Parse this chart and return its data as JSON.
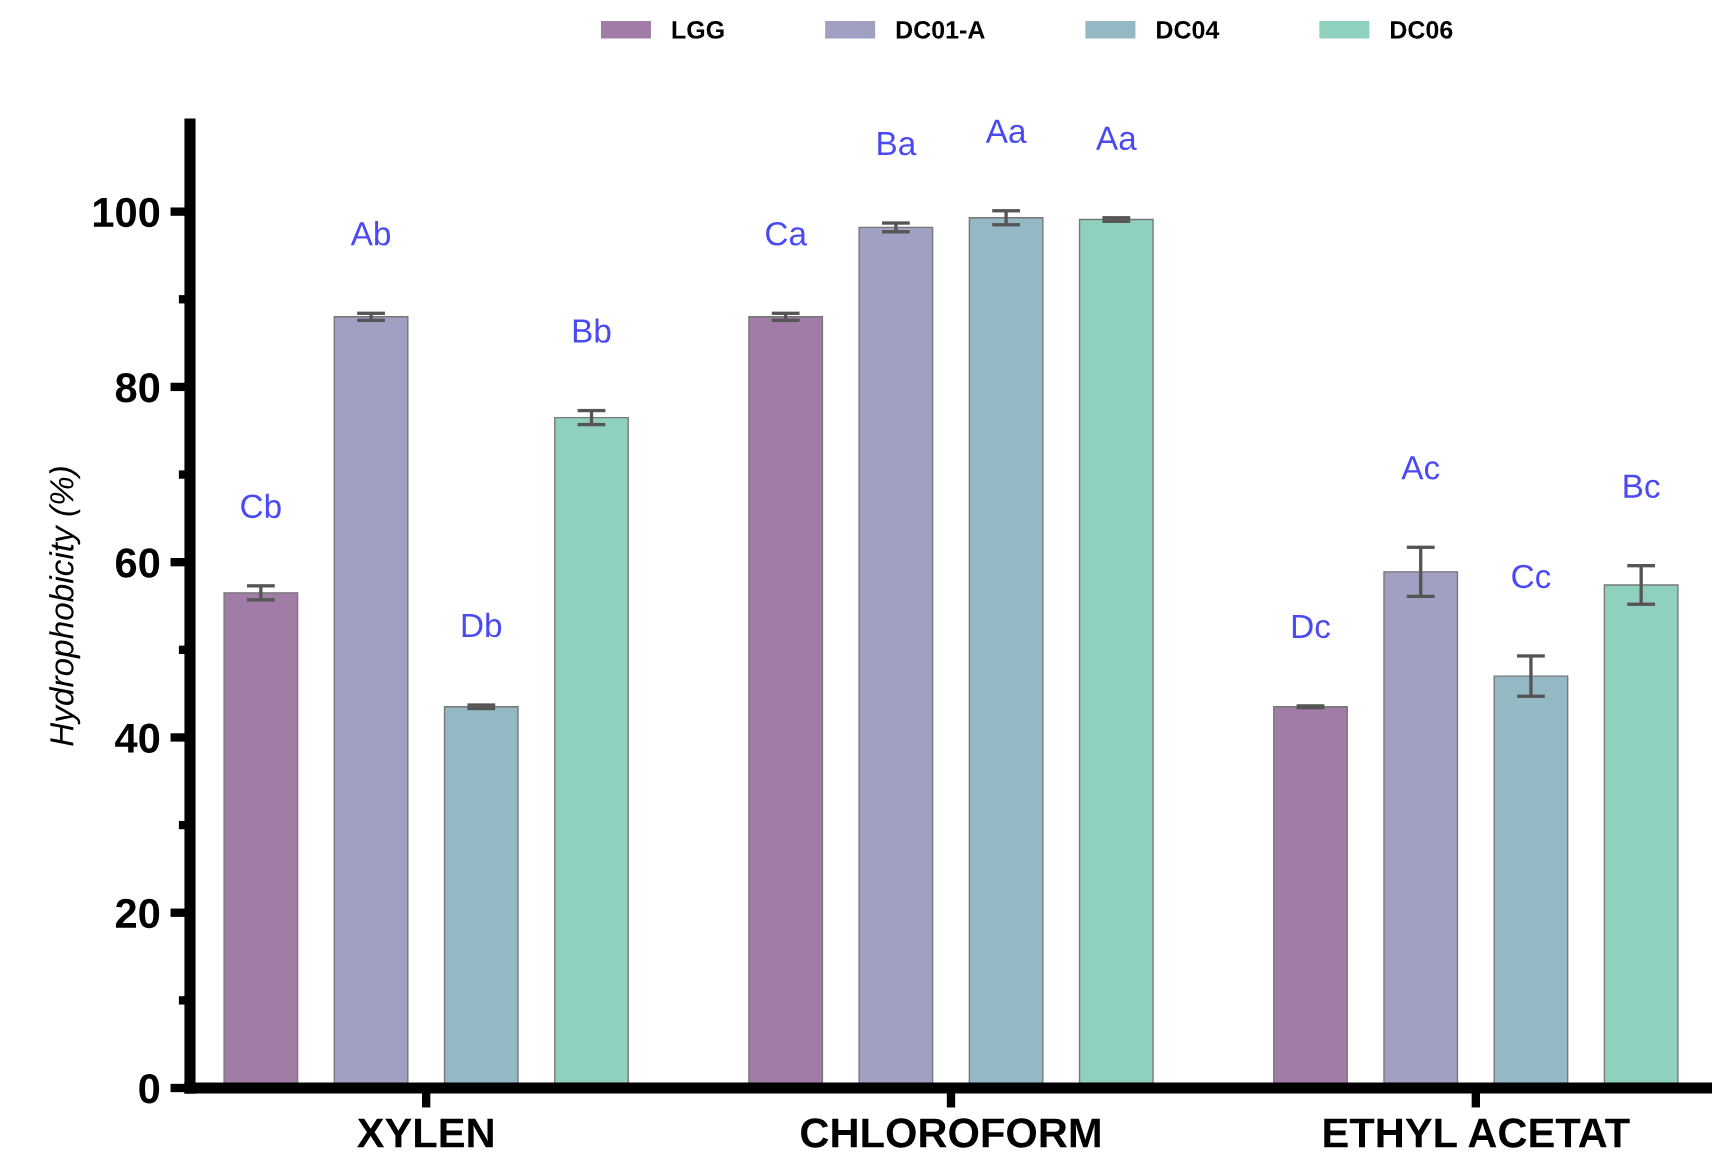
{
  "chart_data": {
    "type": "bar",
    "ylabel": "Hydrophobicity (%)",
    "categories": [
      "XYLEN",
      "CHLOROFORM",
      "ETHYL ACETAT"
    ],
    "series": [
      {
        "name": "LGG",
        "color": "#a07ca6",
        "values": [
          56.5,
          88,
          43.5
        ],
        "errors": [
          0.8,
          0.4,
          0.1
        ]
      },
      {
        "name": "DC01-A",
        "color": "#a0a0c2",
        "values": [
          88,
          98.2,
          58.9
        ],
        "errors": [
          0.4,
          0.5,
          2.8
        ]
      },
      {
        "name": "DC04",
        "color": "#94b8c4",
        "values": [
          43.5,
          99.3,
          47
        ],
        "errors": [
          0.2,
          0.8,
          2.3
        ]
      },
      {
        "name": "DC06",
        "color": "#90d0bf",
        "values": [
          76.5,
          99.1,
          57.4
        ],
        "errors": [
          0.8,
          0.2,
          2.2
        ]
      }
    ],
    "ylim": [
      0,
      110
    ],
    "yticks": [
      0,
      {
        "value": 10,
        "label": null
      },
      20,
      {
        "value": 30,
        "label": null
      },
      40,
      {
        "value": 50,
        "label": null
      },
      60,
      {
        "value": 70,
        "label": null
      },
      80,
      {
        "value": 90,
        "label": null
      },
      100
    ],
    "grid": false,
    "legend": "top",
    "annotations": [
      "Cb",
      "Ab",
      "Db",
      "Bb",
      "Ca",
      "Ba",
      "Aa",
      "Aa",
      "Dc",
      "Ac",
      "Cc",
      "Bc"
    ]
  }
}
